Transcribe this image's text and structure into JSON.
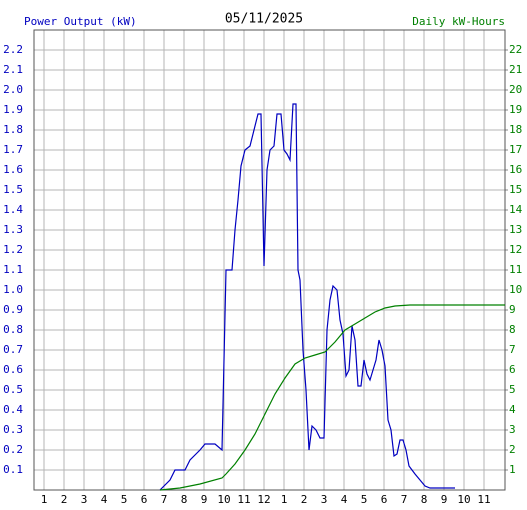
{
  "chart_data": {
    "type": "line",
    "title": "05/11/2025",
    "y_label": "Power Output (kW)",
    "y2_label": "Daily kW-Hours",
    "y_label_color": "#0000c0",
    "y2_label_color": "#008000",
    "grid": true,
    "xlim": [
      0.5,
      24.05
    ],
    "xticks": [
      1,
      2,
      3,
      4,
      5,
      6,
      7,
      8,
      9,
      10,
      11,
      12,
      {
        "value": 13,
        "label": "1"
      },
      {
        "value": 14,
        "label": "2"
      },
      {
        "value": 15,
        "label": "3"
      },
      {
        "value": 16,
        "label": "4"
      },
      {
        "value": 17,
        "label": "5"
      },
      {
        "value": 18,
        "label": "6"
      },
      {
        "value": 19,
        "label": "7"
      },
      {
        "value": 20,
        "label": "8"
      },
      {
        "value": 21,
        "label": "9"
      },
      {
        "value": 22,
        "label": "10"
      },
      {
        "value": 23,
        "label": "11"
      }
    ],
    "ylim": [
      0,
      2.3
    ],
    "yticks": [
      0.1,
      0.2,
      0.3,
      0.4,
      0.5,
      0.6,
      0.7,
      0.8,
      0.9,
      {
        "value": 1,
        "label": "1.0"
      },
      1.1,
      1.2,
      1.3,
      1.4,
      1.5,
      1.6,
      1.7,
      1.8,
      1.9,
      {
        "value": 2,
        "label": "2.0"
      },
      2.1,
      2.2
    ],
    "y2lim": [
      0,
      23
    ],
    "y2ticks": [
      1,
      2,
      3,
      4,
      5,
      6,
      7,
      8,
      9,
      10,
      11,
      12,
      13,
      14,
      15,
      16,
      17,
      18,
      19,
      20,
      21,
      22
    ],
    "series": [
      {
        "color": "#0000c0",
        "x": [
          6.8,
          7.3,
          7.55,
          8.05,
          8.3,
          8.8,
          9.05,
          9.55,
          9.9,
          10.1,
          10.4,
          10.55,
          10.7,
          10.85,
          11.05,
          11.3,
          11.5,
          11.7,
          11.85,
          12.0,
          12.15,
          12.3,
          12.5,
          12.65,
          12.85,
          13.0,
          13.15,
          13.3,
          13.45,
          13.6,
          13.7,
          13.8,
          13.95,
          14.1,
          14.25,
          14.4,
          14.6,
          14.8,
          15.0,
          15.15,
          15.3,
          15.45,
          15.65,
          15.8,
          15.95,
          16.1,
          16.25,
          16.4,
          16.55,
          16.7,
          16.85,
          17.0,
          17.15,
          17.3,
          17.45,
          17.6,
          17.75,
          17.9,
          18.05,
          18.2,
          18.35,
          18.5,
          18.65,
          18.8,
          18.95,
          19.1,
          19.25,
          19.4,
          19.55,
          19.8,
          20.05,
          20.3,
          21.55
        ],
        "values": [
          0,
          0.05,
          0.1,
          0.1,
          0.15,
          0.2,
          0.23,
          0.23,
          0.2,
          1.1,
          1.1,
          1.3,
          1.45,
          1.62,
          1.7,
          1.72,
          1.8,
          1.88,
          1.88,
          1.12,
          1.6,
          1.7,
          1.72,
          1.88,
          1.88,
          1.7,
          1.68,
          1.65,
          1.93,
          1.93,
          1.1,
          1.05,
          0.7,
          0.5,
          0.2,
          0.32,
          0.3,
          0.26,
          0.26,
          0.8,
          0.95,
          1.02,
          1.0,
          0.85,
          0.78,
          0.57,
          0.6,
          0.82,
          0.75,
          0.52,
          0.52,
          0.65,
          0.58,
          0.55,
          0.6,
          0.65,
          0.75,
          0.7,
          0.62,
          0.35,
          0.3,
          0.17,
          0.18,
          0.25,
          0.25,
          0.2,
          0.12,
          0.1,
          0.08,
          0.05,
          0.02,
          0.01,
          0.01
        ]
      },
      {
        "color": "#008000",
        "axis": "y2",
        "x": [
          6.8,
          7.8,
          8.8,
          9.9,
          10.1,
          10.55,
          11.05,
          11.55,
          12.05,
          12.55,
          13.05,
          13.55,
          14.05,
          14.55,
          15.05,
          15.55,
          16.05,
          16.55,
          17.05,
          17.55,
          18.05,
          18.55,
          19.3,
          24.05
        ],
        "values": [
          0,
          0.1,
          0.3,
          0.6,
          0.8,
          1.3,
          2.0,
          2.8,
          3.8,
          4.8,
          5.6,
          6.3,
          6.6,
          6.75,
          6.9,
          7.4,
          8.0,
          8.3,
          8.6,
          8.9,
          9.1,
          9.2,
          9.25,
          9.25
        ]
      }
    ]
  }
}
